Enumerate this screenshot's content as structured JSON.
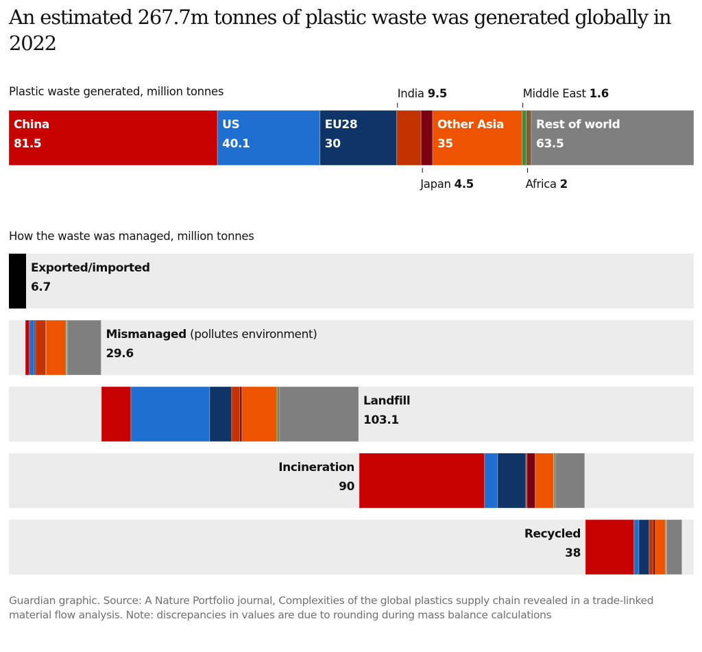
{
  "title": "An estimated 267.7m tonnes of plastic waste was generated globally in 2022",
  "footer": "Guardian graphic. Source: A Nature Portfolio journal, Complexities of the global plastics supply chain revealed in a trade-linked material flow analysis. Note: discrepancies in values are due to rounding during mass balance calculations",
  "chart_data": [
    {
      "type": "bar",
      "orientation": "horizontal-stacked",
      "title": "Plastic waste generated, million tonnes",
      "total": 267.7,
      "categories": [
        "China",
        "US",
        "EU28",
        "India",
        "Japan",
        "Other Asia",
        "Middle East",
        "Africa",
        "Rest of world"
      ],
      "values": [
        81.5,
        40.1,
        30,
        9.5,
        4.5,
        35,
        1.6,
        2,
        63.5
      ],
      "colors": [
        "#c70000",
        "#1e6fcf",
        "#0f3467",
        "#c23300",
        "#7d0010",
        "#ee5300",
        "#3d8c40",
        "#7d5c3c",
        "#7f7f7f"
      ],
      "inline_labels": [
        {
          "name": "China",
          "value": "81.5"
        },
        {
          "name": "US",
          "value": "40.1"
        },
        {
          "name": "EU28",
          "value": "30"
        },
        null,
        null,
        {
          "name": "Other Asia",
          "value": "35"
        },
        null,
        null,
        {
          "name": "Rest of world",
          "value": "63.5"
        }
      ],
      "callouts": [
        {
          "index": 3,
          "name": "India",
          "value": "9.5",
          "position": "top"
        },
        {
          "index": 4,
          "name": "Japan",
          "value": "4.5",
          "position": "bottom"
        },
        {
          "index": 6,
          "name": "Middle East",
          "value": "1.6",
          "position": "top"
        },
        {
          "index": 7,
          "name": "Africa",
          "value": "2",
          "position": "bottom"
        }
      ]
    },
    {
      "type": "bar",
      "orientation": "horizontal-waterfall",
      "title": "How the waste was managed, million tonnes",
      "scale_total": 267.7,
      "categories": [
        "China",
        "US",
        "EU28",
        "India",
        "Japan",
        "Other Asia",
        "Middle East",
        "Africa",
        "Rest of world"
      ],
      "rows": [
        {
          "label": "Exported/imported",
          "label_extra": "",
          "total": "6.7",
          "single_color": "#000000",
          "values": [
            6.7
          ],
          "label_side": "right"
        },
        {
          "label": "Mismanaged",
          "label_extra": " (pollutes environment)",
          "total": "29.6",
          "values": [
            1.6,
            1.9,
            0.5,
            4.0,
            0.1,
            7.8,
            0.2,
            0.3,
            13.2
          ],
          "label_side": "right"
        },
        {
          "label": "Landfill",
          "label_extra": "",
          "total": "103.1",
          "values": [
            11.5,
            30.8,
            8.6,
            3.2,
            0.8,
            13.7,
            0.4,
            0.6,
            30.9
          ],
          "label_side": "right"
        },
        {
          "label": "Incineration",
          "label_extra": "",
          "total": "90",
          "values": [
            49.0,
            5.1,
            11.0,
            0.5,
            3.2,
            7.2,
            0.3,
            0.5,
            11.3
          ],
          "label_side": "left"
        },
        {
          "label": "Recycled",
          "label_extra": "",
          "total": "38",
          "values": [
            19.0,
            1.9,
            4.0,
            1.6,
            0.8,
            4.0,
            0.2,
            0.3,
            5.9
          ],
          "label_side": "left"
        }
      ],
      "row_background": "#ececec"
    }
  ]
}
